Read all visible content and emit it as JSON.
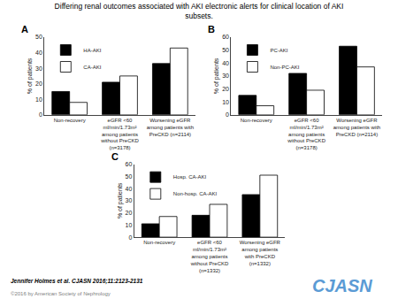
{
  "title": "Differing renal outcomes associated with AKI electronic alerts for clinical location of AKI\nsubsets.",
  "annotations": [
    {
      "text": "Jennifer Holmes et al. CJASN 2016;11:2123-2131"
    },
    {
      "text": "©2016 by American Society of Nephrology",
      "color": "gray"
    },
    {
      "text": "CJASN",
      "color": "#5b9bd5"
    }
  ],
  "chart_data": [
    {
      "type": "bar",
      "title": "A",
      "categories": [
        "Non-recovery",
        "eGFR <60\nml/min/1.73m²\namong patients\nwithout PreCKD\n(n=3178)",
        "Worsening eGFR\namong patients with\nPreCKD (n=2114)"
      ],
      "series": [
        {
          "name": "HA-AKI",
          "color": "black",
          "values": [
            15,
            21,
            33
          ]
        },
        {
          "name": "CA-AKI",
          "color": "white",
          "values": [
            8,
            25,
            43
          ]
        }
      ],
      "ylabel": "% of patients",
      "ylim": [
        0,
        50
      ],
      "yticks": [
        0,
        10,
        20,
        30,
        40,
        50
      ],
      "grid": false,
      "legend": "upper left"
    },
    {
      "type": "bar",
      "title": "B",
      "categories": [
        "Non-recovery",
        "eGFR <60\nml/min/1.73m²\namong patients\nwithout PreCKD\n(n=3178)",
        "Worsening eGFR\namong patients with\nPreCKD (n=2114)"
      ],
      "series": [
        {
          "name": "PC-AKI",
          "color": "black",
          "values": [
            15,
            32,
            53
          ]
        },
        {
          "name": "Non-PC-AKI",
          "color": "white",
          "values": [
            7,
            19,
            37
          ]
        }
      ],
      "ylabel": "% of patients",
      "ylim": [
        0,
        60
      ],
      "yticks": [
        0,
        10,
        20,
        30,
        40,
        50,
        60
      ],
      "grid": false,
      "legend": "upper left"
    },
    {
      "type": "bar",
      "title": "C",
      "categories": [
        "Non-recovery",
        "eGFR <60\nml/min/1.73m²\namong patients\nwithout PreCKD\n(n=1332)",
        "Worsening eGFR\namong patients\nwith PreCKD\n(n=1332)"
      ],
      "series": [
        {
          "name": "Hosp. CA-AKI",
          "color": "black",
          "values": [
            11,
            18,
            35
          ]
        },
        {
          "name": "Non-hosp. CA-AKI",
          "color": "white",
          "values": [
            17,
            27,
            51
          ]
        }
      ],
      "ylabel": "% of patients",
      "ylim": [
        0,
        60
      ],
      "yticks": [
        0,
        10,
        20,
        30,
        40,
        50,
        60
      ],
      "grid": false,
      "legend": "upper left"
    }
  ]
}
